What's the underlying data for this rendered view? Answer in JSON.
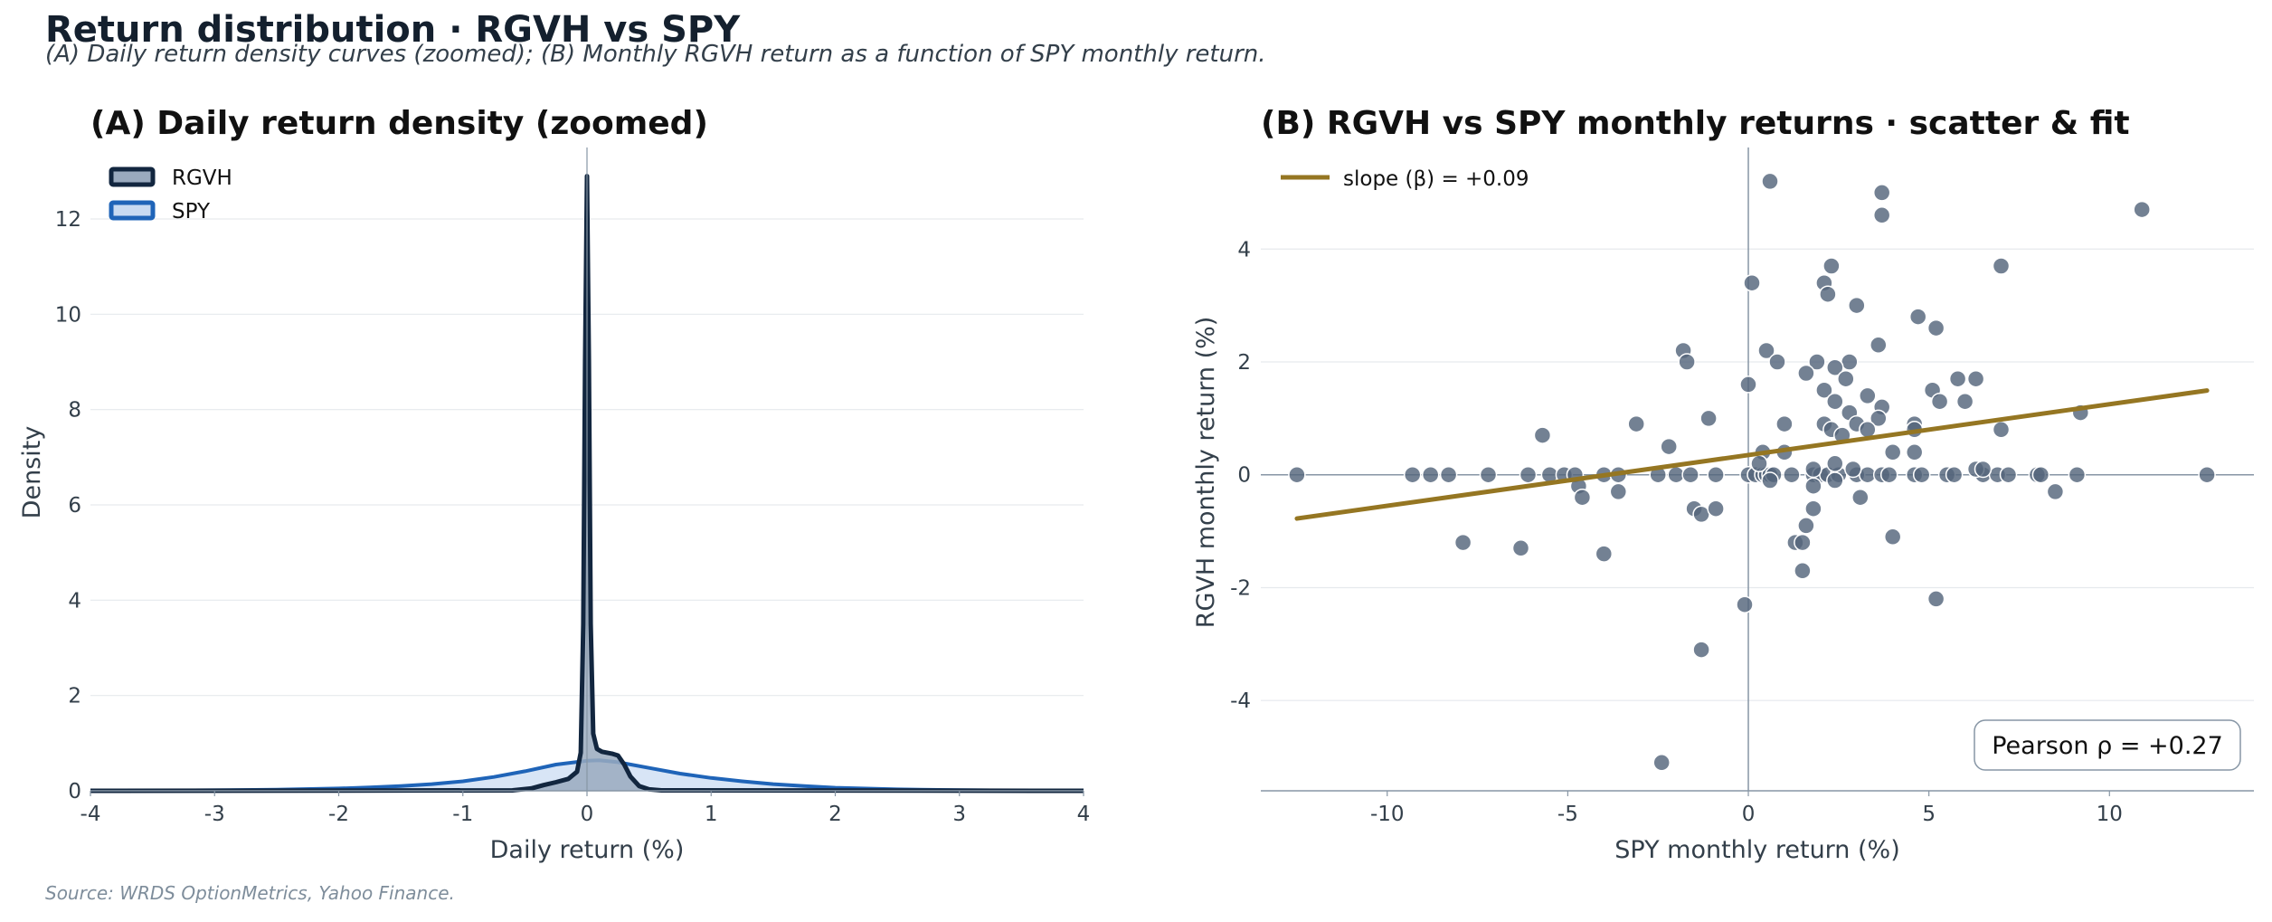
{
  "title": "Return distribution  ·  RGVH vs SPY",
  "subtitle": "(A) Daily return density curves (zoomed); (B) Monthly RGVH return as a function of SPY monthly return.",
  "source": "Source: WRDS OptionMetrics, Yahoo Finance.",
  "colors": {
    "rgvh_line": "#12263f",
    "rgvh_fill": "#9aaabe",
    "spy_line": "#1f64b8",
    "spy_fill": "#c8daf2",
    "fit_line": "#957622",
    "points": "#54657b",
    "grid": "#e6e9ed",
    "spine": "#8796a5"
  },
  "chart_data": [
    {
      "panel": "A",
      "type": "area",
      "title": "(A) Daily return density  (zoomed)",
      "xlabel": "Daily return  (%)",
      "ylabel": "Density",
      "xlim": [
        -4,
        4
      ],
      "ylim": [
        0,
        13.5
      ],
      "xticks": [
        -4,
        -3,
        -2,
        -1,
        0,
        1,
        2,
        3,
        4
      ],
      "yticks": [
        0,
        2,
        4,
        6,
        8,
        10,
        12
      ],
      "legend": "top-left",
      "grid": "horizontal",
      "series": [
        {
          "name": "RGVH",
          "x": [
            -4,
            -0.6,
            -0.45,
            -0.35,
            -0.25,
            -0.15,
            -0.08,
            -0.05,
            -0.03,
            -0.015,
            0,
            0.015,
            0.03,
            0.05,
            0.08,
            0.12,
            0.2,
            0.25,
            0.3,
            0.35,
            0.42,
            0.5,
            0.6,
            4
          ],
          "y": [
            0,
            0.01,
            0.05,
            0.12,
            0.18,
            0.25,
            0.4,
            0.8,
            3.5,
            9.0,
            12.9,
            9.0,
            3.5,
            1.2,
            0.88,
            0.82,
            0.78,
            0.74,
            0.55,
            0.3,
            0.1,
            0.03,
            0.01,
            0
          ]
        },
        {
          "name": "SPY",
          "x": [
            -4,
            -3.5,
            -3,
            -2.5,
            -2,
            -1.75,
            -1.5,
            -1.25,
            -1,
            -0.75,
            -0.5,
            -0.25,
            0,
            0.1,
            0.25,
            0.5,
            0.75,
            1,
            1.25,
            1.5,
            1.75,
            2,
            2.5,
            3,
            3.5,
            4
          ],
          "y": [
            0.003,
            0.006,
            0.012,
            0.025,
            0.05,
            0.07,
            0.1,
            0.14,
            0.2,
            0.29,
            0.41,
            0.55,
            0.63,
            0.64,
            0.6,
            0.48,
            0.36,
            0.27,
            0.2,
            0.14,
            0.1,
            0.065,
            0.03,
            0.013,
            0.006,
            0.003
          ]
        }
      ]
    },
    {
      "panel": "B",
      "type": "scatter",
      "title": "(B) RGVH vs SPY monthly returns  ·  scatter & fit",
      "xlabel": "SPY monthly return  (%)",
      "ylabel": "RGVH monthly return  (%)",
      "xlim": [
        -13.5,
        14
      ],
      "ylim": [
        -5.6,
        5.8
      ],
      "xticks": [
        -10,
        -5,
        0,
        5,
        10
      ],
      "yticks": [
        -4,
        -2,
        0,
        2,
        4
      ],
      "legend": "top-left",
      "grid": "horizontal",
      "fit": {
        "label": "slope (β) = +0.09",
        "slope": 0.09,
        "intercept": 0.35,
        "x": [
          -12.5,
          12.7
        ]
      },
      "annotation": "Pearson ρ = +0.27",
      "points": [
        [
          -12.5,
          0
        ],
        [
          -9.3,
          0
        ],
        [
          -8.8,
          0
        ],
        [
          -8.3,
          0
        ],
        [
          -7.2,
          0
        ],
        [
          -6.1,
          0
        ],
        [
          -5.5,
          0
        ],
        [
          -5.1,
          0
        ],
        [
          -4.8,
          0
        ],
        [
          -4.0,
          0
        ],
        [
          -3.6,
          0
        ],
        [
          -2.5,
          0
        ],
        [
          -2.0,
          0
        ],
        [
          -1.6,
          0
        ],
        [
          -0.9,
          0
        ],
        [
          0,
          0
        ],
        [
          0.2,
          0
        ],
        [
          0.4,
          0
        ],
        [
          0.5,
          0
        ],
        [
          0.6,
          0
        ],
        [
          0.7,
          0
        ],
        [
          1.2,
          0
        ],
        [
          1.8,
          0
        ],
        [
          2.0,
          0
        ],
        [
          2.2,
          0
        ],
        [
          2.5,
          0
        ],
        [
          3.0,
          0
        ],
        [
          3.3,
          0
        ],
        [
          3.7,
          0
        ],
        [
          3.9,
          0
        ],
        [
          4.6,
          0
        ],
        [
          4.8,
          0
        ],
        [
          5.5,
          0
        ],
        [
          5.7,
          0
        ],
        [
          6.5,
          0
        ],
        [
          6.9,
          0
        ],
        [
          7.2,
          0
        ],
        [
          8.0,
          0
        ],
        [
          8.1,
          0
        ],
        [
          9.1,
          0
        ],
        [
          12.7,
          0
        ],
        [
          0.6,
          5.2
        ],
        [
          3.7,
          5.0
        ],
        [
          3.7,
          4.6
        ],
        [
          10.9,
          4.7
        ],
        [
          2.3,
          3.7
        ],
        [
          7.0,
          3.7
        ],
        [
          0.1,
          3.4
        ],
        [
          2.1,
          3.4
        ],
        [
          2.2,
          3.2
        ],
        [
          3.0,
          3.0
        ],
        [
          4.7,
          2.8
        ],
        [
          5.2,
          2.6
        ],
        [
          3.6,
          2.3
        ],
        [
          0.5,
          2.2
        ],
        [
          -1.8,
          2.2
        ],
        [
          -1.7,
          2.0
        ],
        [
          0.8,
          2.0
        ],
        [
          1.9,
          2.0
        ],
        [
          2.8,
          2.0
        ],
        [
          1.6,
          1.8
        ],
        [
          2.4,
          1.9
        ],
        [
          2.7,
          1.7
        ],
        [
          6.3,
          1.7
        ],
        [
          0.0,
          1.6
        ],
        [
          5.8,
          1.7
        ],
        [
          2.1,
          1.5
        ],
        [
          2.4,
          1.3
        ],
        [
          3.3,
          1.4
        ],
        [
          5.1,
          1.5
        ],
        [
          5.3,
          1.3
        ],
        [
          6.0,
          1.3
        ],
        [
          3.7,
          1.2
        ],
        [
          -1.1,
          1.0
        ],
        [
          1.0,
          0.9
        ],
        [
          2.8,
          1.1
        ],
        [
          3.0,
          0.9
        ],
        [
          3.6,
          1.0
        ],
        [
          9.2,
          1.1
        ],
        [
          -3.1,
          0.9
        ],
        [
          2.1,
          0.9
        ],
        [
          4.6,
          0.9
        ],
        [
          -5.7,
          0.7
        ],
        [
          2.3,
          0.8
        ],
        [
          2.6,
          0.7
        ],
        [
          3.3,
          0.8
        ],
        [
          7.0,
          0.8
        ],
        [
          4.6,
          0.8
        ],
        [
          -2.2,
          0.5
        ],
        [
          0.4,
          0.4
        ],
        [
          1.0,
          0.4
        ],
        [
          4.0,
          0.4
        ],
        [
          4.6,
          0.4
        ],
        [
          0.3,
          0.2
        ],
        [
          2.4,
          0.2
        ],
        [
          1.8,
          0.1
        ],
        [
          2.9,
          0.1
        ],
        [
          6.3,
          0.1
        ],
        [
          6.5,
          0.1
        ],
        [
          -4.7,
          -0.2
        ],
        [
          1.8,
          -0.2
        ],
        [
          -4.6,
          -0.4
        ],
        [
          -3.6,
          -0.3
        ],
        [
          3.1,
          -0.4
        ],
        [
          8.5,
          -0.3
        ],
        [
          0.6,
          -0.1
        ],
        [
          2.4,
          -0.1
        ],
        [
          -1.5,
          -0.6
        ],
        [
          -1.3,
          -0.7
        ],
        [
          -0.9,
          -0.6
        ],
        [
          1.8,
          -0.6
        ],
        [
          1.6,
          -0.9
        ],
        [
          1.3,
          -1.2
        ],
        [
          1.5,
          -1.2
        ],
        [
          4.0,
          -1.1
        ],
        [
          -7.9,
          -1.2
        ],
        [
          -6.3,
          -1.3
        ],
        [
          -4.0,
          -1.4
        ],
        [
          1.5,
          -1.7
        ],
        [
          5.2,
          -2.2
        ],
        [
          -0.1,
          -2.3
        ],
        [
          -1.3,
          -3.1
        ],
        [
          -2.4,
          -5.1
        ]
      ]
    }
  ]
}
